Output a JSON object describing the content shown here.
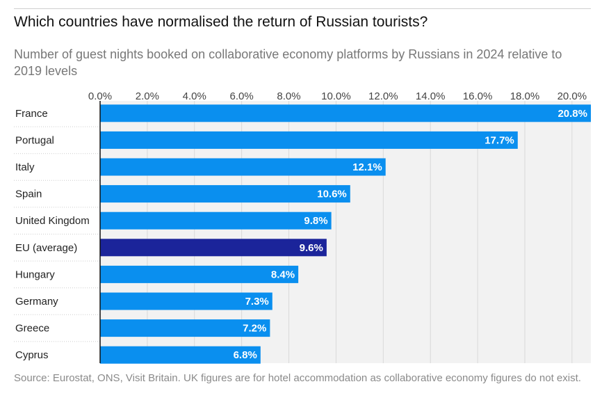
{
  "title": "Which countries have normalised the return of Russian tourists?",
  "subtitle": "Number of guest nights booked on collaborative economy platforms by Russians in 2024 relative to 2019 levels",
  "source": "Source: Eurostat, ONS, Visit Britain. UK figures are for hotel accommodation as collaborative economy figures do not exist.",
  "colors": {
    "bar": "#0a8fef",
    "highlight": "#1b249a",
    "track": "#f2f2f2",
    "grid": "#d9d9d9",
    "text": "#222222"
  },
  "chart_data": {
    "type": "bar",
    "orientation": "horizontal",
    "title": "Which countries have normalised the return of Russian tourists?",
    "subtitle": "Number of guest nights booked on collaborative economy platforms by Russians in 2024 relative to 2019 levels",
    "categories": [
      "France",
      "Portugal",
      "Italy",
      "Spain",
      "United Kingdom",
      "EU (average)",
      "Hungary",
      "Germany",
      "Greece",
      "Cyprus"
    ],
    "values": [
      20.8,
      17.7,
      12.1,
      10.6,
      9.8,
      9.6,
      8.4,
      7.3,
      7.2,
      6.8
    ],
    "value_labels": [
      "20.8%",
      "17.7%",
      "12.1%",
      "10.6%",
      "9.8%",
      "9.6%",
      "8.4%",
      "7.3%",
      "7.2%",
      "6.8%"
    ],
    "highlight": "EU (average)",
    "x_ticks": [
      0,
      2,
      4,
      6,
      8,
      10,
      12,
      14,
      16,
      18,
      20
    ],
    "x_tick_labels": [
      "0.0%",
      "2.0%",
      "4.0%",
      "6.0%",
      "8.0%",
      "10.0%",
      "12.0%",
      "14.0%",
      "16.0%",
      "18.0%",
      "20.0%"
    ],
    "xlim": [
      0,
      20.8
    ],
    "xlabel": "",
    "ylabel": "",
    "grid": true,
    "axis_position": "top"
  }
}
